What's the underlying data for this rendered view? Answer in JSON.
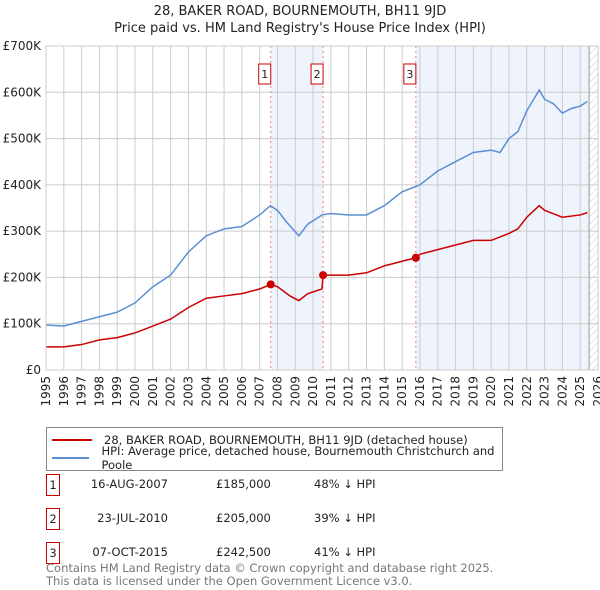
{
  "chart_data": {
    "type": "line",
    "title": "28, BAKER ROAD, BOURNEMOUTH, BH11 9JD",
    "subtitle": "Price paid vs. HM Land Registry's House Price Index (HPI)",
    "xlim": [
      1995,
      2026
    ],
    "ylim": [
      0,
      700000
    ],
    "y_ticks": [
      {
        "v": 0,
        "label": "£0"
      },
      {
        "v": 100000,
        "label": "£100K"
      },
      {
        "v": 200000,
        "label": "£200K"
      },
      {
        "v": 300000,
        "label": "£300K"
      },
      {
        "v": 400000,
        "label": "£400K"
      },
      {
        "v": 500000,
        "label": "£500K"
      },
      {
        "v": 600000,
        "label": "£600K"
      },
      {
        "v": 700000,
        "label": "£700K"
      }
    ],
    "x_ticks": [
      "1995",
      "1996",
      "1997",
      "1998",
      "1999",
      "2000",
      "2001",
      "2002",
      "2003",
      "2004",
      "2005",
      "2006",
      "2007",
      "2008",
      "2009",
      "2010",
      "2011",
      "2012",
      "2013",
      "2014",
      "2015",
      "2016",
      "2017",
      "2018",
      "2019",
      "2020",
      "2021",
      "2022",
      "2023",
      "2024",
      "2025",
      "2026"
    ],
    "grid": true,
    "series": [
      {
        "name": "28, BAKER ROAD, BOURNEMOUTH, BH11 9JD (detached house)",
        "color": "#cc0000",
        "x": [
          1995,
          1996,
          1997,
          1998,
          1999,
          2000,
          2001,
          2002,
          2003,
          2004,
          2005,
          2006,
          2007,
          2007.62,
          2008,
          2008.7,
          2009.2,
          2009.7,
          2010.5,
          2010.56,
          2011,
          2012,
          2013,
          2014,
          2015,
          2015.77,
          2016,
          2017,
          2018,
          2019,
          2020,
          2021,
          2021.5,
          2022,
          2022.7,
          2023,
          2024,
          2025,
          2025.4
        ],
        "y": [
          50000,
          50000,
          55000,
          65000,
          70000,
          80000,
          95000,
          110000,
          135000,
          155000,
          160000,
          165000,
          175000,
          185000,
          180000,
          160000,
          150000,
          165000,
          175000,
          205000,
          205000,
          205000,
          210000,
          225000,
          235000,
          242500,
          250000,
          260000,
          270000,
          280000,
          280000,
          295000,
          305000,
          330000,
          355000,
          345000,
          330000,
          335000,
          340000
        ]
      },
      {
        "name": "HPI: Average price, detached house, Bournemouth Christchurch and Poole",
        "color": "#5b8fd4",
        "x": [
          1995,
          1996,
          1997,
          1998,
          1999,
          2000,
          2001,
          2002,
          2003,
          2004,
          2005,
          2006,
          2007,
          2007.6,
          2008,
          2008.5,
          2009.2,
          2009.7,
          2010.5,
          2011,
          2012,
          2013,
          2014,
          2015,
          2016,
          2017,
          2018,
          2019,
          2020,
          2020.5,
          2021,
          2021.5,
          2022,
          2022.7,
          2023,
          2023.5,
          2024,
          2024.5,
          2025,
          2025.4
        ],
        "y": [
          97000,
          95000,
          105000,
          115000,
          125000,
          145000,
          180000,
          205000,
          255000,
          290000,
          305000,
          310000,
          335000,
          355000,
          345000,
          320000,
          290000,
          315000,
          335000,
          338000,
          335000,
          335000,
          355000,
          385000,
          400000,
          430000,
          450000,
          470000,
          475000,
          470000,
          500000,
          515000,
          560000,
          605000,
          585000,
          575000,
          555000,
          565000,
          570000,
          580000
        ]
      }
    ],
    "sales": [
      {
        "n": "1",
        "x": 2007.62,
        "y": 185000,
        "date": "16-AUG-2007",
        "price": "£185,000",
        "hpi": "48% ↓ HPI"
      },
      {
        "n": "2",
        "x": 2010.56,
        "y": 205000,
        "date": "23-JUL-2010",
        "price": "£205,000",
        "hpi": "39% ↓ HPI"
      },
      {
        "n": "3",
        "x": 2015.77,
        "y": 242500,
        "date": "07-OCT-2015",
        "price": "£242,500",
        "hpi": "41% ↓ HPI"
      }
    ],
    "shaded": [
      [
        2007.62,
        2010.56
      ],
      [
        2015.77,
        2025.5
      ]
    ],
    "forecast_from": 2025.5
  },
  "footer": {
    "line1": "Contains HM Land Registry data © Crown copyright and database right 2025.",
    "line2": "This data is licensed under the Open Government Licence v3.0."
  }
}
